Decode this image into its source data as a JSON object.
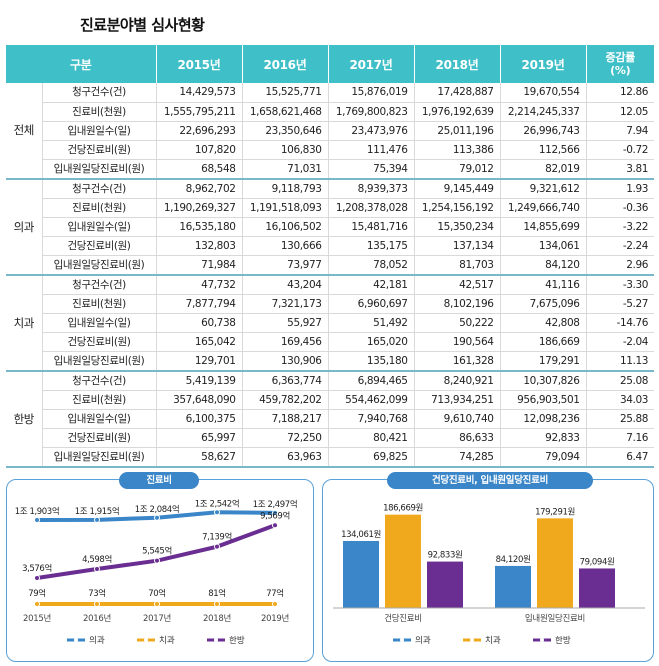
{
  "title": "진료분야별 심사현황",
  "table": {
    "headers": [
      "구분",
      "2015년",
      "2016년",
      "2017년",
      "2018년",
      "2019년",
      "증감률\n(%)"
    ],
    "groups": [
      {
        "name": "전체",
        "rows": [
          {
            "item": "청구건수(건)",
            "v": [
              "14,429,573",
              "15,525,771",
              "15,876,019",
              "17,428,887",
              "19,670,554"
            ],
            "rate": "12.86"
          },
          {
            "item": "진료비(천원)",
            "v": [
              "1,555,795,211",
              "1,658,621,468",
              "1,769,800,823",
              "1,976,192,639",
              "2,214,245,337"
            ],
            "rate": "12.05"
          },
          {
            "item": "입내원일수(일)",
            "v": [
              "22,696,293",
              "23,350,646",
              "23,473,976",
              "25,011,196",
              "26,996,743"
            ],
            "rate": "7.94"
          },
          {
            "item": "건당진료비(원)",
            "v": [
              "107,820",
              "106,830",
              "111,476",
              "113,386",
              "112,566"
            ],
            "rate": "-0.72"
          },
          {
            "item": "입내원일당진료비(원)",
            "v": [
              "68,548",
              "71,031",
              "75,394",
              "79,012",
              "82,019"
            ],
            "rate": "3.81"
          }
        ]
      },
      {
        "name": "의과",
        "rows": [
          {
            "item": "청구건수(건)",
            "v": [
              "8,962,702",
              "9,118,793",
              "8,939,373",
              "9,145,449",
              "9,321,612"
            ],
            "rate": "1.93"
          },
          {
            "item": "진료비(천원)",
            "v": [
              "1,190,269,327",
              "1,191,518,093",
              "1,208,378,028",
              "1,254,156,192",
              "1,249,666,740"
            ],
            "rate": "-0.36"
          },
          {
            "item": "입내원일수(일)",
            "v": [
              "16,535,180",
              "16,106,502",
              "15,481,716",
              "15,350,234",
              "14,855,699"
            ],
            "rate": "-3.22"
          },
          {
            "item": "건당진료비(원)",
            "v": [
              "132,803",
              "130,666",
              "135,175",
              "137,134",
              "134,061"
            ],
            "rate": "-2.24"
          },
          {
            "item": "입내원일당진료비(원)",
            "v": [
              "71,984",
              "73,977",
              "78,052",
              "81,703",
              "84,120"
            ],
            "rate": "2.96"
          }
        ]
      },
      {
        "name": "치과",
        "rows": [
          {
            "item": "청구건수(건)",
            "v": [
              "47,732",
              "43,204",
              "42,181",
              "42,517",
              "41,116"
            ],
            "rate": "-3.30"
          },
          {
            "item": "진료비(천원)",
            "v": [
              "7,877,794",
              "7,321,173",
              "6,960,697",
              "8,102,196",
              "7,675,096"
            ],
            "rate": "-5.27"
          },
          {
            "item": "입내원일수(일)",
            "v": [
              "60,738",
              "55,927",
              "51,492",
              "50,222",
              "42,808"
            ],
            "rate": "-14.76"
          },
          {
            "item": "건당진료비(원)",
            "v": [
              "165,042",
              "169,456",
              "165,020",
              "190,564",
              "186,669"
            ],
            "rate": "-2.04"
          },
          {
            "item": "입내원일당진료비(원)",
            "v": [
              "129,701",
              "130,906",
              "135,180",
              "161,328",
              "179,291"
            ],
            "rate": "11.13"
          }
        ]
      },
      {
        "name": "한방",
        "rows": [
          {
            "item": "청구건수(건)",
            "v": [
              "5,419,139",
              "6,363,774",
              "6,894,465",
              "8,240,921",
              "10,307,826"
            ],
            "rate": "25.08"
          },
          {
            "item": "진료비(천원)",
            "v": [
              "357,648,090",
              "459,782,202",
              "554,462,099",
              "713,934,251",
              "956,903,501"
            ],
            "rate": "34.03"
          },
          {
            "item": "입내원일수(일)",
            "v": [
              "6,100,375",
              "7,188,217",
              "7,940,768",
              "9,610,740",
              "12,098,236"
            ],
            "rate": "25.88"
          },
          {
            "item": "건당진료비(원)",
            "v": [
              "65,997",
              "72,250",
              "80,421",
              "86,633",
              "92,833"
            ],
            "rate": "7.16"
          },
          {
            "item": "입내원일당진료비(원)",
            "v": [
              "58,627",
              "63,963",
              "69,825",
              "74,285",
              "79,094"
            ],
            "rate": "6.47"
          }
        ]
      }
    ]
  },
  "chart_data": [
    {
      "type": "line",
      "title": "진료비",
      "categories": [
        "2015년",
        "2016년",
        "2017년",
        "2018년",
        "2019년"
      ],
      "series": [
        {
          "name": "의과",
          "color": "#3a86c8",
          "values": [
            11903,
            11915,
            12084,
            12542,
            12497
          ],
          "labels": [
            "1조 1,903억",
            "1조 1,915억",
            "1조 2,084억",
            "1조 2,542억",
            "1조 2,497억"
          ]
        },
        {
          "name": "치과",
          "color": "#f0a81c",
          "values": [
            79,
            73,
            70,
            81,
            77
          ],
          "labels": [
            "79억",
            "73억",
            "70억",
            "81억",
            "77억"
          ]
        },
        {
          "name": "한방",
          "color": "#6a2d91",
          "values": [
            3576,
            4598,
            5545,
            7139,
            9569
          ],
          "labels": [
            "3,576억",
            "4,598억",
            "5,545억",
            "7,139억",
            "9,569억"
          ]
        }
      ]
    },
    {
      "type": "bar",
      "title": "건당진료비, 입내원일당진료비",
      "categories": [
        "건당진료비",
        "입내원일당진료비"
      ],
      "series": [
        {
          "name": "의과",
          "color": "#3a86c8",
          "values": [
            134061,
            84120
          ],
          "labels": [
            "134,061원",
            "84,120원"
          ]
        },
        {
          "name": "치과",
          "color": "#f0a81c",
          "values": [
            186669,
            179291
          ],
          "labels": [
            "186,669원",
            "179,291원"
          ]
        },
        {
          "name": "한방",
          "color": "#6a2d91",
          "values": [
            92833,
            79094
          ],
          "labels": [
            "92,833원",
            "79,094원"
          ]
        }
      ],
      "ylim": [
        0,
        200000
      ]
    }
  ]
}
